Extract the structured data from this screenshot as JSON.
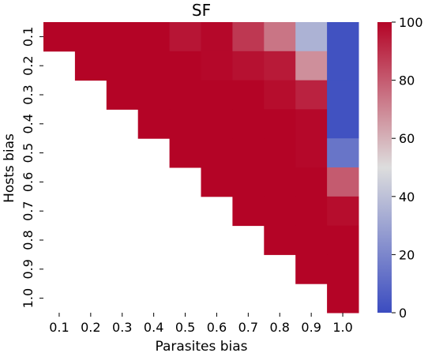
{
  "chart_data": {
    "type": "heatmap",
    "title": "SF",
    "xlabel": "Parasites bias",
    "ylabel": "Hosts bias",
    "x_categories": [
      "0.1",
      "0.2",
      "0.3",
      "0.4",
      "0.5",
      "0.6",
      "0.7",
      "0.8",
      "0.9",
      "1.0"
    ],
    "y_categories": [
      "0.1",
      "0.2",
      "0.3",
      "0.4",
      "0.5",
      "0.6",
      "0.7",
      "0.8",
      "0.9",
      "1.0"
    ],
    "values": [
      [
        100,
        100,
        100,
        100,
        96,
        99,
        88,
        74,
        35,
        2
      ],
      [
        null,
        100,
        100,
        100,
        100,
        99,
        97,
        95,
        68,
        2
      ],
      [
        null,
        null,
        100,
        100,
        100,
        100,
        100,
        98,
        93,
        2
      ],
      [
        null,
        null,
        null,
        100,
        100,
        100,
        100,
        100,
        99,
        2
      ],
      [
        null,
        null,
        null,
        null,
        100,
        100,
        100,
        100,
        99,
        14
      ],
      [
        null,
        null,
        null,
        null,
        null,
        100,
        100,
        100,
        100,
        80
      ],
      [
        null,
        null,
        null,
        null,
        null,
        null,
        100,
        100,
        100,
        98
      ],
      [
        null,
        null,
        null,
        null,
        null,
        null,
        null,
        100,
        100,
        100
      ],
      [
        null,
        null,
        null,
        null,
        null,
        null,
        null,
        null,
        100,
        100
      ],
      [
        null,
        null,
        null,
        null,
        null,
        null,
        null,
        null,
        null,
        100
      ]
    ],
    "colormap": "coolwarm",
    "vmin": 0,
    "vmax": 100,
    "colorbar_ticks": [
      0,
      20,
      40,
      60,
      80,
      100
    ],
    "colors": {
      "low": "#3b4cc0",
      "mid": "#dddddd",
      "high": "#b40426"
    }
  }
}
